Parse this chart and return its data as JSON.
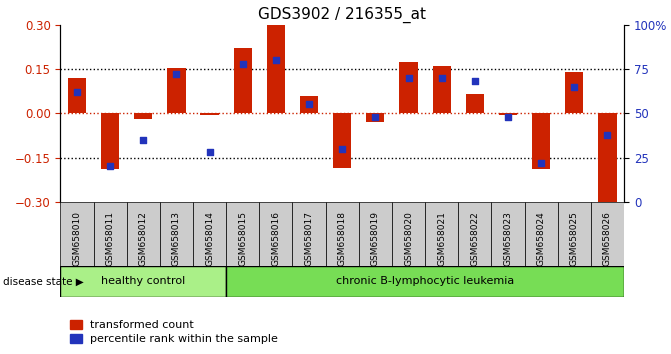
{
  "title": "GDS3902 / 216355_at",
  "samples": [
    "GSM658010",
    "GSM658011",
    "GSM658012",
    "GSM658013",
    "GSM658014",
    "GSM658015",
    "GSM658016",
    "GSM658017",
    "GSM658018",
    "GSM658019",
    "GSM658020",
    "GSM658021",
    "GSM658022",
    "GSM658023",
    "GSM658024",
    "GSM658025",
    "GSM658026"
  ],
  "red_values": [
    0.12,
    -0.19,
    -0.02,
    0.155,
    -0.005,
    0.22,
    0.3,
    0.06,
    -0.185,
    -0.03,
    0.175,
    0.16,
    0.065,
    -0.005,
    -0.19,
    0.14,
    -0.3
  ],
  "blue_pct": [
    62,
    20,
    35,
    72,
    28,
    78,
    80,
    55,
    30,
    48,
    70,
    70,
    68,
    48,
    22,
    65,
    38
  ],
  "healthy_count": 5,
  "ylim_left": [
    -0.3,
    0.3
  ],
  "ylim_right": [
    0,
    100
  ],
  "yticks_left": [
    -0.3,
    -0.15,
    0,
    0.15,
    0.3
  ],
  "yticks_right": [
    0,
    25,
    50,
    75,
    100
  ],
  "hlines_black": [
    -0.15,
    0.15
  ],
  "hline_red": 0,
  "red_color": "#cc2200",
  "blue_color": "#2233bb",
  "healthy_bg": "#aaf088",
  "leukemia_bg": "#77dd55",
  "tick_bg": "#cccccc",
  "disease_label_healthy": "healthy control",
  "disease_label_leukemia": "chronic B-lymphocytic leukemia",
  "legend_red": "transformed count",
  "legend_blue": "percentile rank within the sample",
  "bar_width": 0.55,
  "xlabel_disease": "disease state"
}
